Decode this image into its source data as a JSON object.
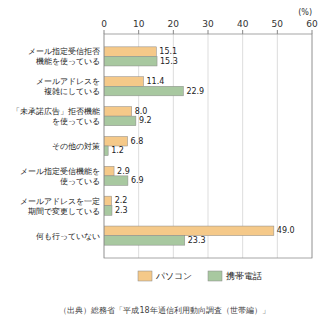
{
  "chart_data": {
    "type": "bar",
    "orientation": "horizontal",
    "categories": [
      "メール指定受信拒否\n機能を使っている",
      "メールアドレスを\n複雑にしている",
      "「未承諾広告」拒否機能\nを使っている",
      "その他の対策",
      "メール指定受信機能を\n使っている",
      "メールアドレスを一定\n期間で変更している",
      "何も行っていない"
    ],
    "series": [
      {
        "name": "パソコン",
        "color": "#F5C989",
        "values": [
          15.1,
          11.4,
          8.0,
          6.8,
          2.9,
          2.2,
          49.0
        ],
        "value_labels": [
          "15.1",
          "11.4",
          "8.0",
          "6.8",
          "2.9",
          "2.2",
          "49.0"
        ]
      },
      {
        "name": "携帯電話",
        "color": "#A8C8A0",
        "values": [
          15.3,
          22.9,
          9.2,
          1.2,
          6.9,
          2.3,
          23.3
        ],
        "value_labels": [
          "15.3",
          "22.9",
          "9.2",
          "1.2",
          "6.9",
          "2.3",
          "23.3"
        ]
      }
    ],
    "xlabel": "(%)",
    "source": "（出典）総務省「平成18年通信利用動向調査（世帯編）」",
    "xlim": [
      0,
      60
    ],
    "xticks": [
      0,
      10,
      20,
      30,
      40,
      50,
      60
    ],
    "grid": true,
    "data_labels": true,
    "legend": "bottom"
  }
}
